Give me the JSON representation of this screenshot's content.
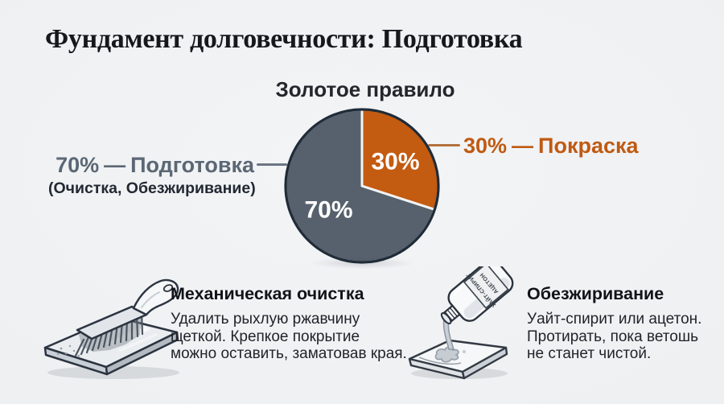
{
  "header": {
    "title": "Фундамент долговечности: Подготовка"
  },
  "chart": {
    "title": "Золотое правило",
    "callouts": {
      "prep": {
        "percent": "70%",
        "separator": "—",
        "label": "Подготовка",
        "sublabel": "(Очистка, Обезжиривание)",
        "color": "#5b6774"
      },
      "paint": {
        "percent": "30%",
        "separator": "—",
        "label": "Покраска",
        "color": "#bf5a12"
      }
    }
  },
  "chart_data": {
    "type": "pie",
    "title": "Золотое правило",
    "start_angle_deg": 108,
    "direction": "clockwise",
    "radius_px": 95,
    "divider_color": "#f2f3f4",
    "outline_color": "#1f2b37",
    "slices": [
      {
        "id": "prep",
        "label": "Подготовка (Очистка, Обезжиривание)",
        "value": 70,
        "pct_label": "70%",
        "color": "#56616d"
      },
      {
        "id": "paint",
        "label": "Покраска",
        "value": 30,
        "pct_label": "30%",
        "color": "#c35b10"
      }
    ]
  },
  "sections": [
    {
      "title": "Механическая очистка",
      "body": "Удалить рыхлую ржавчину\nщеткой. Крепкое покрытие\nможно оставить, заматовав края.",
      "icon": "wire-brush-on-metal-plate"
    },
    {
      "title": "Обезжиривание",
      "body": "Уайт-спирит или ацетон.\nПротирать, пока ветошь\nне станет чистой.",
      "icon": "solvent-bottle-pouring-on-rag"
    }
  ],
  "illustration_text": {
    "bottle_label_top": "УАЙТ-СПИРИТ",
    "bottle_label_bottom": "АЦЕТОН"
  }
}
